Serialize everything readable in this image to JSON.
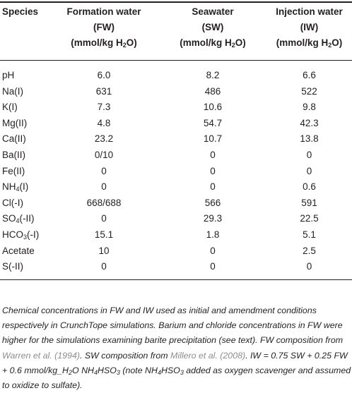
{
  "table": {
    "headers": [
      {
        "lines": [
          "Species"
        ]
      },
      {
        "lines": [
          "Formation water",
          "(FW)",
          "(mmol/kg H2O)"
        ]
      },
      {
        "lines": [
          "Seawater",
          "(SW)",
          "(mmol/kg H2O)"
        ]
      },
      {
        "lines": [
          "Injection water",
          "(IW)",
          "(mmol/kg H2O)"
        ]
      }
    ],
    "rows": [
      {
        "species": {
          "base": "pH",
          "sub": "",
          "rest": ""
        },
        "fw": "6.0",
        "sw": "8.2",
        "iw": "6.6"
      },
      {
        "species": {
          "base": "Na(I)",
          "sub": "",
          "rest": ""
        },
        "fw": "631",
        "sw": "486",
        "iw": "522"
      },
      {
        "species": {
          "base": "K(I)",
          "sub": "",
          "rest": ""
        },
        "fw": "7.3",
        "sw": "10.6",
        "iw": "9.8"
      },
      {
        "species": {
          "base": "Mg(II)",
          "sub": "",
          "rest": ""
        },
        "fw": "4.8",
        "sw": "54.7",
        "iw": "42.3"
      },
      {
        "species": {
          "base": "Ca(II)",
          "sub": "",
          "rest": ""
        },
        "fw": "23.2",
        "sw": "10.7",
        "iw": "13.8"
      },
      {
        "species": {
          "base": "Ba(II)",
          "sub": "",
          "rest": ""
        },
        "fw": "0/10",
        "sw": "0",
        "iw": "0"
      },
      {
        "species": {
          "base": "Fe(II)",
          "sub": "",
          "rest": ""
        },
        "fw": "0",
        "sw": "0",
        "iw": "0"
      },
      {
        "species": {
          "base": "NH",
          "sub": "4",
          "rest": "(I)"
        },
        "fw": "0",
        "sw": "0",
        "iw": "0.6"
      },
      {
        "species": {
          "base": "Cl(-I)",
          "sub": "",
          "rest": ""
        },
        "fw": "668/688",
        "sw": "566",
        "iw": "591"
      },
      {
        "species": {
          "base": "SO",
          "sub": "4",
          "rest": "(-II)"
        },
        "fw": "0",
        "sw": "29.3",
        "iw": "22.5"
      },
      {
        "species": {
          "base": "HCO",
          "sub": "3",
          "rest": "(-I)"
        },
        "fw": "15.1",
        "sw": "1.8",
        "iw": "5.1"
      },
      {
        "species": {
          "base": "Acetate",
          "sub": "",
          "rest": ""
        },
        "fw": "10",
        "sw": "0",
        "iw": "2.5"
      },
      {
        "species": {
          "base": "S(-II)",
          "sub": "",
          "rest": ""
        },
        "fw": "0",
        "sw": "0",
        "iw": "0"
      }
    ]
  },
  "caption": {
    "part1": "Chemical concentrations in FW and IW used as initial and amendment conditions respectively in CrunchTope simulations. Barium and chloride concentrations in FW were higher for the simulations examining barite precipitation (see text). FW composition from ",
    "ref1": "Warren et al. (1994)",
    "part2": ". SW composition from ",
    "ref2": "Millero et al. (2008)",
    "part3": ". IW = 0.75 SW + 0.25 FW + 0.6 mmol/kg_H",
    "sub1": "2",
    "part4": "O NH",
    "sub2": "4",
    "part5": "HSO",
    "sub3": "3",
    "part6": " (note NH",
    "sub4": "4",
    "part7": "HSO",
    "sub5": "3",
    "part8": " added as oxygen scavenger and assumed to oxidize to sulfate)."
  }
}
